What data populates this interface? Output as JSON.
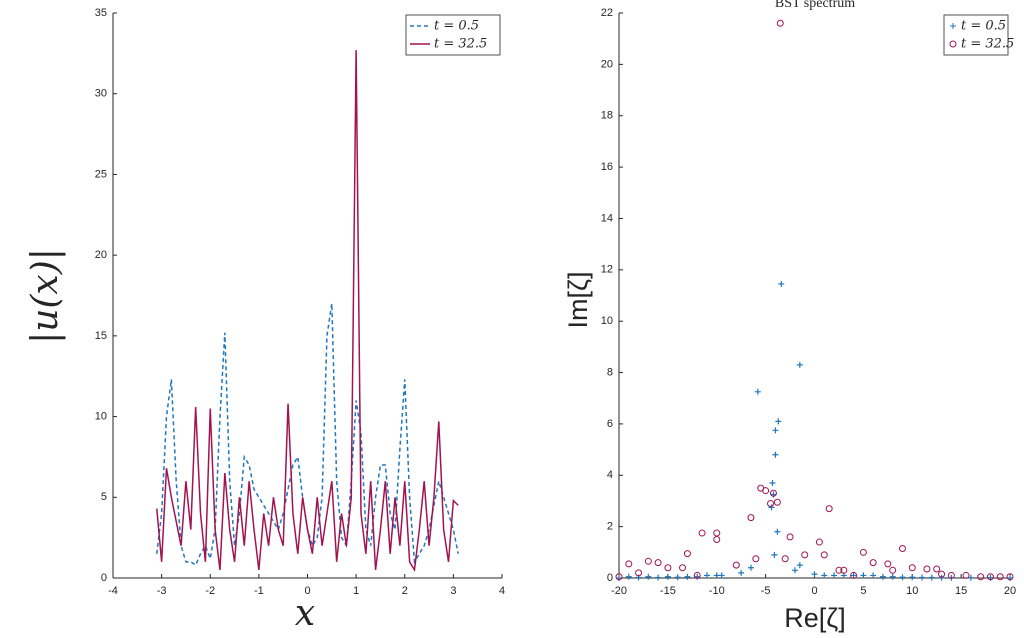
{
  "chart_data": [
    {
      "type": "line",
      "xlabel": "x",
      "ylabel": "|u(x)|",
      "xlim": [
        -4,
        4
      ],
      "xticks": [
        -4,
        -3,
        -2,
        -1,
        0,
        1,
        2,
        3,
        4
      ],
      "ylim": [
        0,
        35
      ],
      "yticks": [
        0,
        5,
        10,
        15,
        20,
        25,
        30,
        35
      ],
      "legend": "upper right",
      "x": [
        -3.1,
        -3.0,
        -2.9,
        -2.8,
        -2.7,
        -2.6,
        -2.5,
        -2.4,
        -2.3,
        -2.2,
        -2.1,
        -2.0,
        -1.9,
        -1.8,
        -1.7,
        -1.6,
        -1.5,
        -1.4,
        -1.3,
        -1.2,
        -1.1,
        -1.0,
        -0.9,
        -0.8,
        -0.7,
        -0.6,
        -0.5,
        -0.4,
        -0.3,
        -0.2,
        -0.1,
        0.0,
        0.1,
        0.2,
        0.3,
        0.4,
        0.5,
        0.6,
        0.7,
        0.8,
        0.9,
        1.0,
        1.1,
        1.2,
        1.3,
        1.4,
        1.5,
        1.6,
        1.7,
        1.8,
        1.9,
        2.0,
        2.1,
        2.2,
        2.3,
        2.4,
        2.5,
        2.6,
        2.7,
        2.8,
        2.9,
        3.0,
        3.1
      ],
      "series": [
        {
          "name": "t = 0.5",
          "color": "#1f77c0",
          "dash": true,
          "values": [
            1.5,
            4,
            10,
            12.3,
            6,
            2,
            1,
            1,
            0.8,
            1.5,
            2,
            1.2,
            3,
            10,
            15.2,
            6,
            2,
            4,
            7.5,
            7,
            5.5,
            5,
            4.5,
            4,
            3.5,
            3,
            4,
            5.5,
            7,
            7.5,
            5,
            3,
            2,
            2.5,
            5,
            15,
            17,
            6,
            2.5,
            2,
            6,
            11,
            9,
            3,
            2,
            5,
            7,
            7,
            4,
            3,
            8,
            12.3,
            5,
            1,
            1.5,
            2,
            3,
            4.5,
            6,
            5,
            4,
            3,
            1.5
          ]
        },
        {
          "name": "t = 32.5",
          "color": "#a2144f",
          "dash": false,
          "values": [
            4.3,
            1,
            6.8,
            5,
            3.5,
            2,
            6,
            3,
            10.6,
            4,
            1,
            10.5,
            3,
            0.5,
            6.5,
            3,
            1,
            5,
            2,
            6,
            3,
            0.5,
            4,
            2,
            5,
            3,
            2,
            10.8,
            4,
            1.5,
            5,
            3,
            1.5,
            5,
            2,
            4,
            6,
            1,
            4,
            2,
            5,
            32.7,
            4,
            1.5,
            6,
            0.5,
            3,
            6,
            1.5,
            5,
            2,
            6,
            1,
            0.5,
            3,
            6,
            2,
            5,
            9.7,
            3,
            1,
            4.8,
            4.5
          ]
        }
      ]
    },
    {
      "type": "scatter",
      "title": "BST spectrum",
      "xlabel": "Re[ζ]",
      "ylabel": "Im[ζ]",
      "xlim": [
        -20,
        20
      ],
      "xticks": [
        -20,
        -15,
        -10,
        -5,
        0,
        5,
        10,
        15,
        20
      ],
      "ylim": [
        0,
        22
      ],
      "yticks": [
        0,
        2,
        4,
        6,
        8,
        10,
        12,
        14,
        16,
        18,
        20,
        22
      ],
      "legend": "upper right",
      "series": [
        {
          "name": "t = 0.5",
          "color": "#1f77c0",
          "marker": "plus",
          "x": [
            -3.4,
            -1.5,
            -5.8,
            -3.7,
            -4.0,
            -4.0,
            -4.3,
            -4.2,
            -4.4,
            -3.8,
            -4.1,
            -1.5,
            -7.5,
            -9.5,
            -10,
            -12,
            -14,
            -16,
            -18,
            -20,
            0,
            2,
            4,
            6,
            8,
            10,
            12,
            14,
            16,
            18,
            20,
            -19,
            -17,
            -15,
            -13,
            -11,
            -6.5,
            -2,
            1,
            3,
            5,
            7,
            9,
            11,
            13
          ],
          "values": [
            11.45,
            8.3,
            7.25,
            6.1,
            5.75,
            4.8,
            3.7,
            3.25,
            2.75,
            1.8,
            0.9,
            0.5,
            0.2,
            0.1,
            0.1,
            0.05,
            0.03,
            0.02,
            0.02,
            0,
            0.15,
            0.1,
            0.1,
            0.1,
            0.05,
            0.03,
            0.02,
            0.01,
            0.01,
            0.01,
            0,
            0.05,
            0.05,
            0.05,
            0.05,
            0.1,
            0.4,
            0.3,
            0.1,
            0.1,
            0.1,
            0.05,
            0.03,
            0.02,
            0.01
          ]
        },
        {
          "name": "t = 32.5",
          "color": "#a2144f",
          "marker": "circle",
          "x": [
            -3.5,
            -5.5,
            -4.2,
            -3.8,
            1.5,
            -6.5,
            -5,
            -4.5,
            -10,
            -10,
            -11.5,
            -2.5,
            0.5,
            -1,
            1,
            -3,
            -6,
            5,
            9,
            -13,
            -16,
            -17,
            -19,
            -15,
            -13.5,
            -8,
            3,
            6,
            7.5,
            10,
            11.5,
            12.5,
            8,
            2.5,
            -18,
            -20,
            14,
            15.5,
            17,
            18,
            19,
            20,
            -12,
            4,
            13
          ],
          "values": [
            21.6,
            3.5,
            3.3,
            2.95,
            2.7,
            2.35,
            3.4,
            2.9,
            1.75,
            1.5,
            1.75,
            1.6,
            1.4,
            0.9,
            0.9,
            0.75,
            0.75,
            1.0,
            1.15,
            0.95,
            0.6,
            0.65,
            0.55,
            0.4,
            0.4,
            0.5,
            0.3,
            0.6,
            0.55,
            0.4,
            0.35,
            0.35,
            0.3,
            0.3,
            0.2,
            0.05,
            0.1,
            0.1,
            0.05,
            0.05,
            0.05,
            0.05,
            0.1,
            0.1,
            0.15
          ]
        }
      ]
    }
  ]
}
